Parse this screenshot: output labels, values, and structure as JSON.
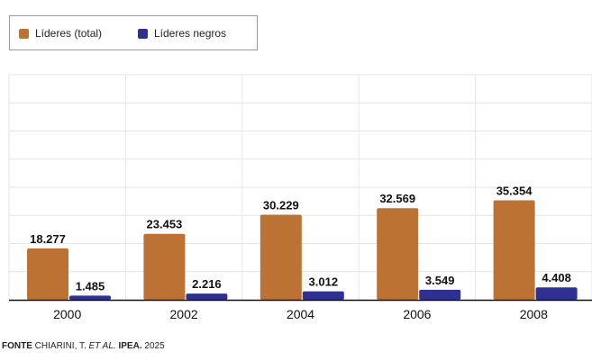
{
  "chart_data": {
    "type": "bar",
    "categories": [
      "2000",
      "2002",
      "2004",
      "2006",
      "2008"
    ],
    "series": [
      {
        "name": "Líderes (total)",
        "color": "#bb7233",
        "values": [
          18277,
          23453,
          30229,
          32569,
          35354
        ],
        "labels": [
          "18.277",
          "23.453",
          "30.229",
          "32.569",
          "35.354"
        ]
      },
      {
        "name": "Líderes negros",
        "color": "#2e3192",
        "values": [
          1485,
          2216,
          3012,
          3549,
          4408
        ],
        "labels": [
          "1.485",
          "2.216",
          "3.012",
          "3.549",
          "4.408"
        ]
      }
    ],
    "ylim": [
      0,
      80000
    ],
    "grid": true,
    "legend_position": "top-left"
  },
  "source": {
    "keyword": "FONTE",
    "author": "CHIARINI, T.",
    "etal": "ET AL.",
    "publisher": "IPEA.",
    "year": "2025"
  }
}
